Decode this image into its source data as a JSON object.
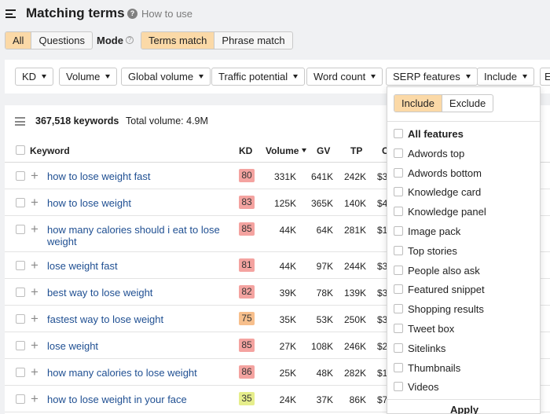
{
  "header": {
    "title": "Matching terms",
    "help_link": "How to use"
  },
  "filter_segment": [
    "All",
    "Questions"
  ],
  "mode": {
    "label": "Mode",
    "options": [
      "Terms match",
      "Phrase match"
    ]
  },
  "filters": [
    "KD",
    "Volume",
    "Global volume",
    "Traffic potential",
    "Word count",
    "SERP features",
    "Include",
    "E"
  ],
  "summary": {
    "count": "367,518 keywords",
    "total_volume": "Total volume: 4.9M"
  },
  "columns": {
    "keyword": "Keyword",
    "kd": "KD",
    "volume": "Volume",
    "gv": "GV",
    "tp": "TP",
    "cpc": "C"
  },
  "rows": [
    {
      "keyword": "how to lose weight fast",
      "kd": "80",
      "kd_color": "#f4a3a0",
      "volume": "331K",
      "gv": "641K",
      "tp": "242K",
      "cpc": "$3"
    },
    {
      "keyword": "how to lose weight",
      "kd": "83",
      "kd_color": "#f4a3a0",
      "volume": "125K",
      "gv": "365K",
      "tp": "140K",
      "cpc": "$4"
    },
    {
      "keyword": "how many calories should i eat to lose weight",
      "kd": "85",
      "kd_color": "#f4a3a0",
      "volume": "44K",
      "gv": "64K",
      "tp": "281K",
      "cpc": "$1"
    },
    {
      "keyword": "lose weight fast",
      "kd": "81",
      "kd_color": "#f4a3a0",
      "volume": "44K",
      "gv": "97K",
      "tp": "244K",
      "cpc": "$3"
    },
    {
      "keyword": "best way to lose weight",
      "kd": "82",
      "kd_color": "#f4a3a0",
      "volume": "39K",
      "gv": "78K",
      "tp": "139K",
      "cpc": "$3"
    },
    {
      "keyword": "fastest way to lose weight",
      "kd": "75",
      "kd_color": "#f7bf8c",
      "volume": "35K",
      "gv": "53K",
      "tp": "250K",
      "cpc": "$3"
    },
    {
      "keyword": "lose weight",
      "kd": "85",
      "kd_color": "#f4a3a0",
      "volume": "27K",
      "gv": "108K",
      "tp": "246K",
      "cpc": "$2"
    },
    {
      "keyword": "how many calories to lose weight",
      "kd": "86",
      "kd_color": "#f4a3a0",
      "volume": "25K",
      "gv": "48K",
      "tp": "282K",
      "cpc": "$1"
    },
    {
      "keyword": "how to lose weight in your face",
      "kd": "35",
      "kd_color": "#e6ee8c",
      "volume": "24K",
      "gv": "37K",
      "tp": "86K",
      "cpc": "$7"
    }
  ],
  "dropdown": {
    "tabs": [
      "Include",
      "Exclude"
    ],
    "options": [
      "All features",
      "Adwords top",
      "Adwords bottom",
      "Knowledge card",
      "Knowledge panel",
      "Image pack",
      "Top stories",
      "People also ask",
      "Featured snippet",
      "Shopping results",
      "Tweet box",
      "Sitelinks",
      "Thumbnails",
      "Videos"
    ],
    "apply": "Apply"
  }
}
